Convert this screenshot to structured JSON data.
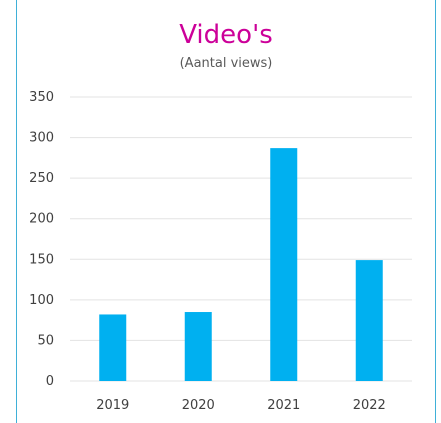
{
  "chart_data": {
    "type": "bar",
    "title": "Video's",
    "subtitle": "(Aantal views)",
    "categories": [
      "2019",
      "2020",
      "2021",
      "2022"
    ],
    "values": [
      82,
      85,
      287,
      149
    ],
    "ylim": [
      0,
      350
    ],
    "yticks": [
      0,
      50,
      100,
      150,
      200,
      250,
      300,
      350
    ],
    "grid": true,
    "colors": {
      "bar": "#00b0f0",
      "title": "#cc0099",
      "grid": "#e3e3e3",
      "frame": "#3fb0d8"
    }
  }
}
